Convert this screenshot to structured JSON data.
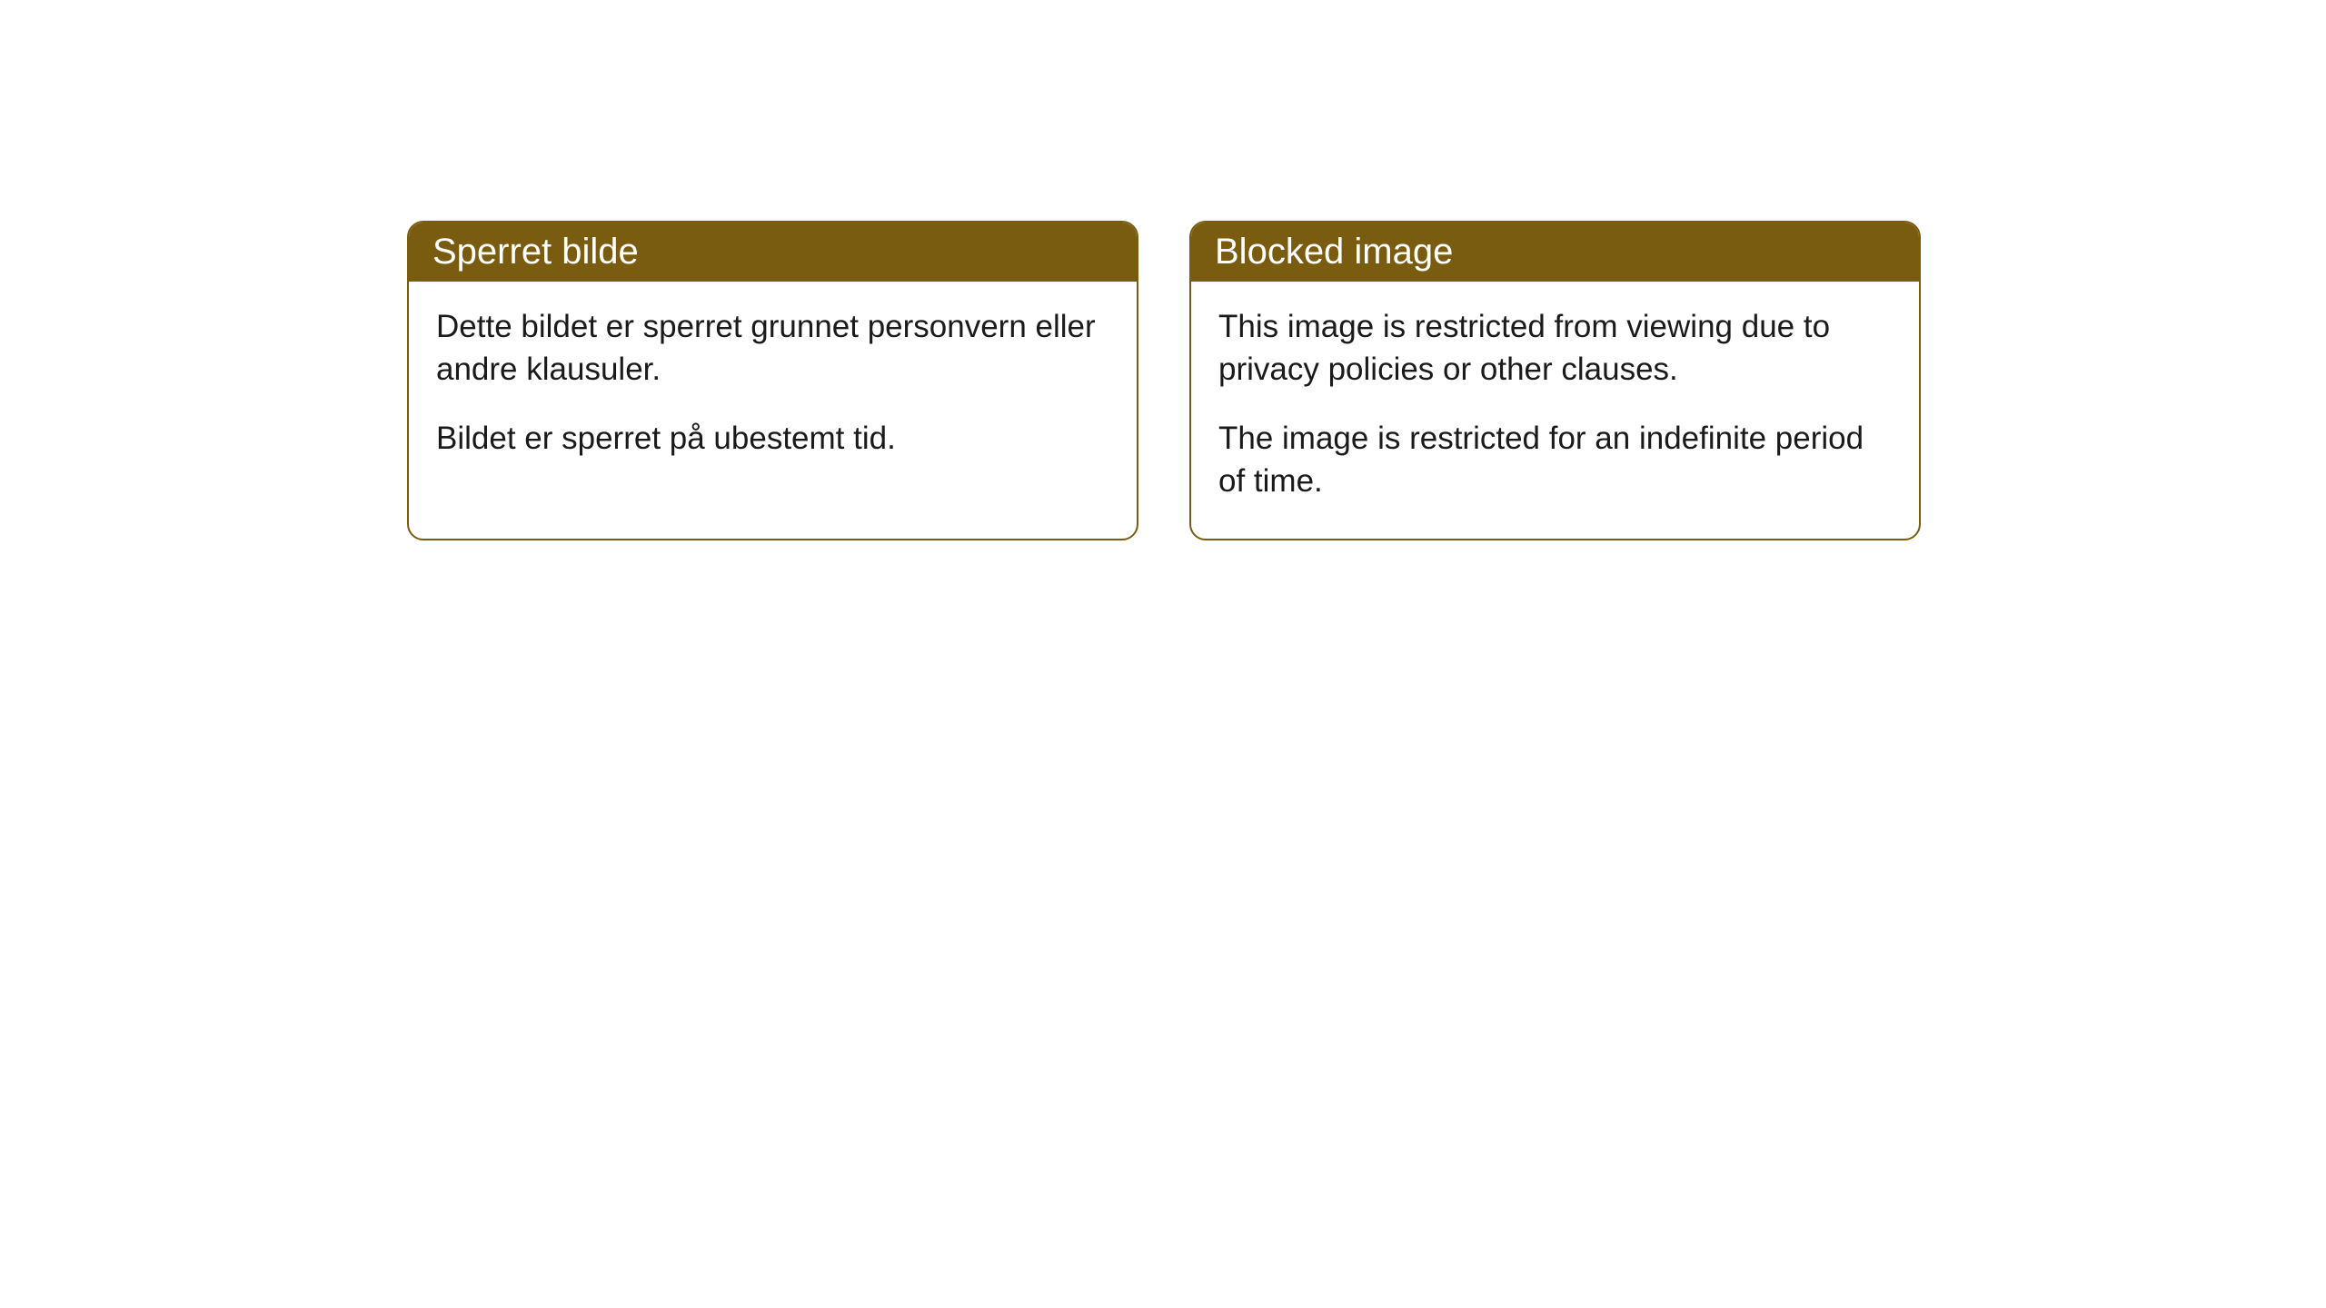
{
  "cards": [
    {
      "title": "Sperret bilde",
      "paragraph1": "Dette bildet er sperret grunnet personvern eller andre klausuler.",
      "paragraph2": "Bildet er sperret på ubestemt tid."
    },
    {
      "title": "Blocked image",
      "paragraph1": "This image is restricted from viewing due to privacy policies or other clauses.",
      "paragraph2": "The image is restricted for an indefinite period of time."
    }
  ],
  "style": {
    "header_bg": "#7a5c11",
    "header_text_color": "#ffffff",
    "border_color": "#7a5c11",
    "body_bg": "#ffffff",
    "body_text_color": "#1a1a1a",
    "border_radius": 18,
    "header_fontsize": 40,
    "body_fontsize": 35
  }
}
